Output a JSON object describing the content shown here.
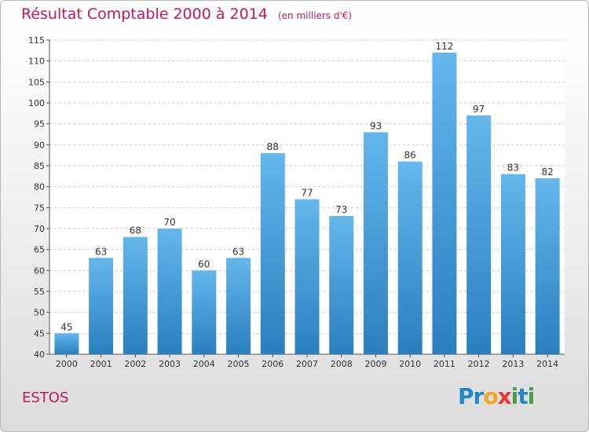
{
  "title": "Résultat Comptable 2000 à 2014",
  "unit_note": "(en milliers d'€)",
  "town": "ESTOS",
  "logo": {
    "text": "Proxiti",
    "letters": [
      "P",
      "r",
      "o",
      "x",
      "i",
      "t",
      "i"
    ],
    "colors": [
      "#1e88c8",
      "#1e88c8",
      "#f5a623",
      "#e53935",
      "#43a047",
      "#1e88c8",
      "#43a047"
    ]
  },
  "colors": {
    "title": "#c2185b",
    "bar_light": "#64b7ec",
    "bar_dark": "#2a7fbf",
    "grid": "#c8c8c8",
    "axis_text": "#333333"
  },
  "chart_data": {
    "type": "bar",
    "title": "Résultat Comptable 2000 à 2014",
    "ylabel": "en milliers d'€",
    "xlabel": "",
    "categories": [
      "2000",
      "2001",
      "2002",
      "2003",
      "2004",
      "2005",
      "2006",
      "2007",
      "2008",
      "2009",
      "2010",
      "2011",
      "2012",
      "2013",
      "2014"
    ],
    "values": [
      45,
      63,
      68,
      70,
      60,
      63,
      88,
      77,
      73,
      93,
      86,
      112,
      97,
      83,
      82
    ],
    "ylim": [
      40,
      115
    ],
    "yticks": [
      40,
      45,
      50,
      55,
      60,
      65,
      70,
      75,
      80,
      85,
      90,
      95,
      100,
      105,
      110,
      115
    ],
    "grid": true,
    "data_labels": true
  }
}
